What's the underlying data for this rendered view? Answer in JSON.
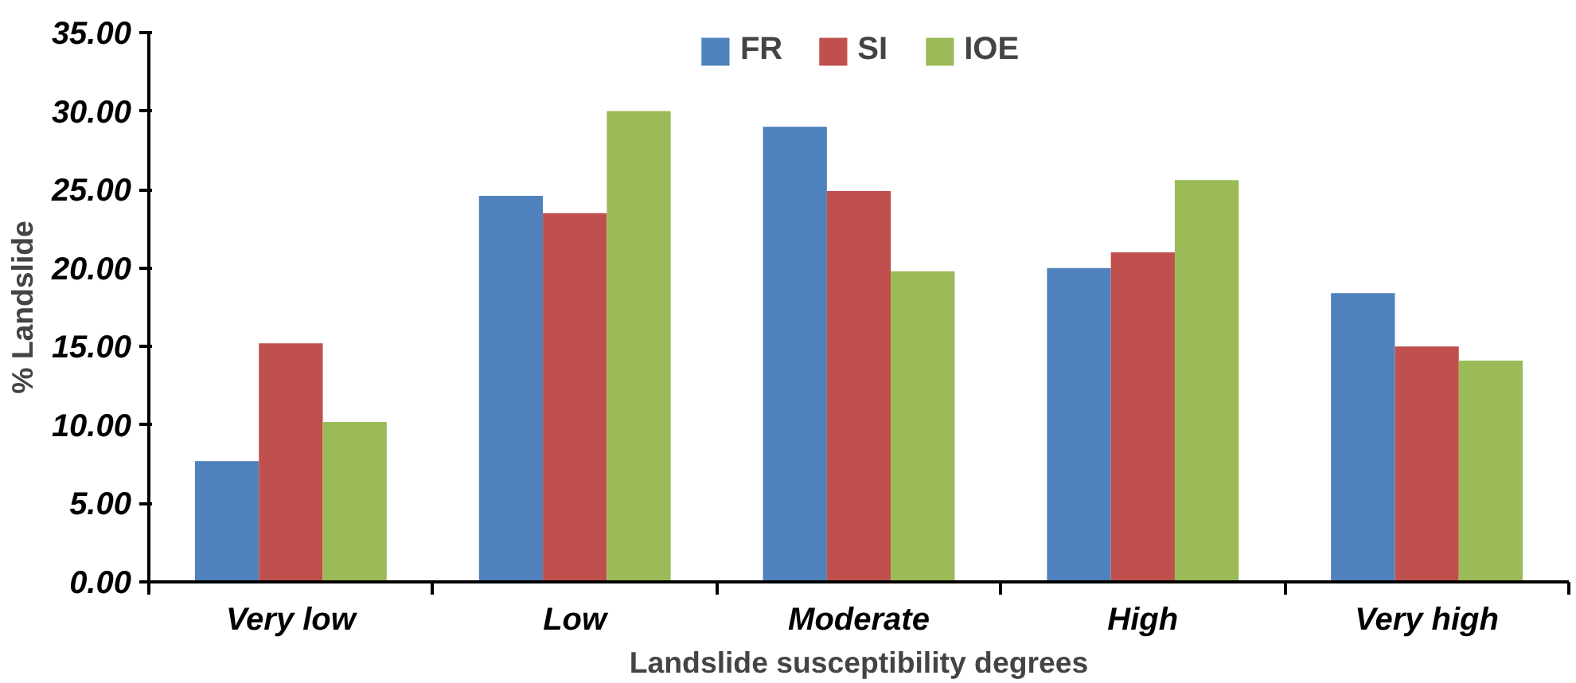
{
  "chart_data": {
    "type": "bar",
    "xlabel": "Landslide susceptibility degrees",
    "ylabel": "% Landslide",
    "categories": [
      "Very low",
      "Low",
      "Moderate",
      "High",
      "Very high"
    ],
    "series": [
      {
        "name": "FR",
        "color": "#4f81bd",
        "values": [
          7.7,
          24.6,
          29.0,
          20.0,
          18.4
        ]
      },
      {
        "name": "SI",
        "color": "#c0504d",
        "values": [
          15.2,
          23.5,
          24.9,
          21.0,
          15.0
        ]
      },
      {
        "name": "IOE",
        "color": "#9bbb59",
        "values": [
          10.2,
          30.0,
          19.8,
          25.6,
          14.1
        ]
      }
    ],
    "ylim": [
      0,
      35
    ],
    "yticks": [
      {
        "value": 0,
        "label": "0.00"
      },
      {
        "value": 5,
        "label": "5.00"
      },
      {
        "value": 10,
        "label": "10.00"
      },
      {
        "value": 15,
        "label": "15.00"
      },
      {
        "value": 20,
        "label": "20.00"
      },
      {
        "value": 25,
        "label": "25.00"
      },
      {
        "value": 30,
        "label": "30.00"
      },
      {
        "value": 35,
        "label": "35.00"
      }
    ],
    "grid": false,
    "legend": "top"
  }
}
